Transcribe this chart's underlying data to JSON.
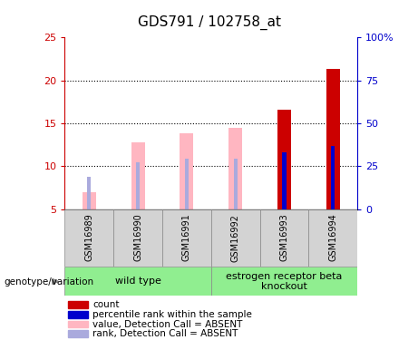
{
  "title": "GDS791 / 102758_at",
  "samples": [
    "GSM16989",
    "GSM16990",
    "GSM16991",
    "GSM16992",
    "GSM16993",
    "GSM16994"
  ],
  "absent_value_bars": [
    7.0,
    12.8,
    13.8,
    14.5,
    null,
    null
  ],
  "absent_rank_bars": [
    8.8,
    10.5,
    10.9,
    10.9,
    null,
    null
  ],
  "present_value_bars": [
    null,
    null,
    null,
    null,
    16.6,
    21.3
  ],
  "present_rank_bars": [
    null,
    null,
    null,
    null,
    11.6,
    12.4
  ],
  "ylim_left": [
    5,
    25
  ],
  "ylim_right": [
    0,
    100
  ],
  "yticks_left": [
    5,
    10,
    15,
    20,
    25
  ],
  "yticks_right": [
    0,
    25,
    50,
    75,
    100
  ],
  "yticklabels_right": [
    "0",
    "25",
    "50",
    "75",
    "100%"
  ],
  "dotted_lines": [
    10,
    15,
    20
  ],
  "absent_value_color": "#FFB6C1",
  "absent_rank_color": "#AAAADD",
  "present_value_color": "#CC0000",
  "present_rank_color": "#0000CC",
  "left_axis_color": "#CC0000",
  "right_axis_color": "#0000CC",
  "group_bg": "#90EE90",
  "sample_bg": "#D3D3D3",
  "title_fontsize": 11,
  "tick_fontsize": 8,
  "sample_fontsize": 7,
  "group_fontsize": 8,
  "legend_fontsize": 7.5,
  "legend_items": [
    {
      "color": "#CC0000",
      "label": "count"
    },
    {
      "color": "#0000CC",
      "label": "percentile rank within the sample"
    },
    {
      "color": "#FFB6C1",
      "label": "value, Detection Call = ABSENT"
    },
    {
      "color": "#AAAADD",
      "label": "rank, Detection Call = ABSENT"
    }
  ],
  "wt_range": [
    0,
    2
  ],
  "erb_range": [
    3,
    5
  ]
}
